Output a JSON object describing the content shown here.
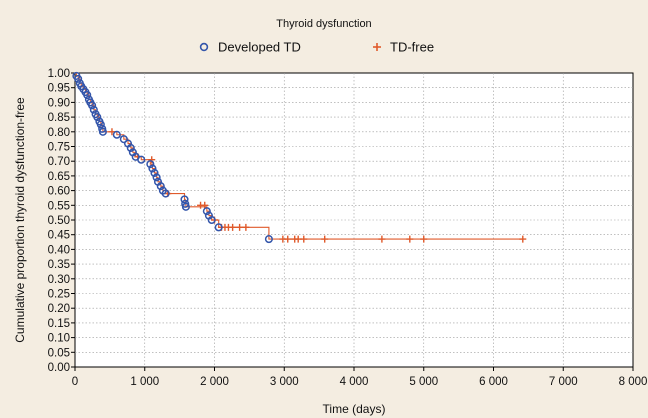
{
  "chart_data": {
    "type": "line",
    "title": "",
    "legend": {
      "title": "Thyroid dysfunction",
      "placement": "top-center",
      "entries": [
        {
          "name": "Developed TD",
          "marker": "circle",
          "color": "#3355aa"
        },
        {
          "name": "TD-free",
          "marker": "plus",
          "color": "#e05a2b"
        }
      ]
    },
    "xlabel": "Time (days)",
    "ylabel": "Cumulative proportion thyroid dysfunction-free",
    "xlim": [
      0,
      8000
    ],
    "ylim": [
      0,
      1
    ],
    "xticks": [
      {
        "value": 0,
        "label": "0"
      },
      {
        "value": 1000,
        "label": "1 000"
      },
      {
        "value": 2000,
        "label": "2 000"
      },
      {
        "value": 3000,
        "label": "3 000"
      },
      {
        "value": 4000,
        "label": "4 000"
      },
      {
        "value": 5000,
        "label": "5 000"
      },
      {
        "value": 6000,
        "label": "6 000"
      },
      {
        "value": 7000,
        "label": "7 000"
      },
      {
        "value": 8000,
        "label": "8 000"
      }
    ],
    "yticks": [
      {
        "value": 0.0,
        "label": "0.00"
      },
      {
        "value": 0.05,
        "label": "0.05"
      },
      {
        "value": 0.1,
        "label": "0.10"
      },
      {
        "value": 0.15,
        "label": "0.15"
      },
      {
        "value": 0.2,
        "label": "0.20"
      },
      {
        "value": 0.25,
        "label": "0.25"
      },
      {
        "value": 0.3,
        "label": "0.30"
      },
      {
        "value": 0.35,
        "label": "0.35"
      },
      {
        "value": 0.4,
        "label": "0.40"
      },
      {
        "value": 0.45,
        "label": "0.45"
      },
      {
        "value": 0.5,
        "label": "0.50"
      },
      {
        "value": 0.55,
        "label": "0.55"
      },
      {
        "value": 0.6,
        "label": "0.60"
      },
      {
        "value": 0.65,
        "label": "0.65"
      },
      {
        "value": 0.7,
        "label": "0.70"
      },
      {
        "value": 0.75,
        "label": "0.75"
      },
      {
        "value": 0.8,
        "label": "0.80"
      },
      {
        "value": 0.85,
        "label": "0.85"
      },
      {
        "value": 0.9,
        "label": "0.90"
      },
      {
        "value": 0.95,
        "label": "0.95"
      },
      {
        "value": 1.0,
        "label": "1.00"
      }
    ],
    "grid": true,
    "line_color": "#e05a2b",
    "series": [
      {
        "name": "Developed TD",
        "marker": "circle",
        "color": "#3355aa",
        "points": [
          {
            "x": 20,
            "y": 0.99
          },
          {
            "x": 45,
            "y": 0.98
          },
          {
            "x": 70,
            "y": 0.965
          },
          {
            "x": 90,
            "y": 0.955
          },
          {
            "x": 120,
            "y": 0.945
          },
          {
            "x": 150,
            "y": 0.935
          },
          {
            "x": 175,
            "y": 0.925
          },
          {
            "x": 200,
            "y": 0.91
          },
          {
            "x": 220,
            "y": 0.9
          },
          {
            "x": 245,
            "y": 0.89
          },
          {
            "x": 270,
            "y": 0.875
          },
          {
            "x": 295,
            "y": 0.86
          },
          {
            "x": 320,
            "y": 0.85
          },
          {
            "x": 350,
            "y": 0.835
          },
          {
            "x": 370,
            "y": 0.825
          },
          {
            "x": 390,
            "y": 0.81
          },
          {
            "x": 400,
            "y": 0.8
          },
          {
            "x": 600,
            "y": 0.79
          },
          {
            "x": 700,
            "y": 0.775
          },
          {
            "x": 760,
            "y": 0.76
          },
          {
            "x": 800,
            "y": 0.745
          },
          {
            "x": 830,
            "y": 0.73
          },
          {
            "x": 870,
            "y": 0.715
          },
          {
            "x": 950,
            "y": 0.705
          },
          {
            "x": 1080,
            "y": 0.69
          },
          {
            "x": 1110,
            "y": 0.675
          },
          {
            "x": 1140,
            "y": 0.66
          },
          {
            "x": 1170,
            "y": 0.645
          },
          {
            "x": 1190,
            "y": 0.63
          },
          {
            "x": 1230,
            "y": 0.615
          },
          {
            "x": 1260,
            "y": 0.6
          },
          {
            "x": 1300,
            "y": 0.59
          },
          {
            "x": 1570,
            "y": 0.57
          },
          {
            "x": 1580,
            "y": 0.555
          },
          {
            "x": 1590,
            "y": 0.545
          },
          {
            "x": 1890,
            "y": 0.53
          },
          {
            "x": 1920,
            "y": 0.515
          },
          {
            "x": 1960,
            "y": 0.5
          },
          {
            "x": 2060,
            "y": 0.475
          },
          {
            "x": 2780,
            "y": 0.435
          }
        ]
      },
      {
        "name": "TD-free",
        "marker": "plus",
        "color": "#e05a2b",
        "points": [
          {
            "x": 530,
            "y": 0.8
          },
          {
            "x": 900,
            "y": 0.715
          },
          {
            "x": 1100,
            "y": 0.705
          },
          {
            "x": 1330,
            "y": 0.59
          },
          {
            "x": 1800,
            "y": 0.55
          },
          {
            "x": 1860,
            "y": 0.55
          },
          {
            "x": 2000,
            "y": 0.5
          },
          {
            "x": 2100,
            "y": 0.475
          },
          {
            "x": 2150,
            "y": 0.475
          },
          {
            "x": 2200,
            "y": 0.475
          },
          {
            "x": 2260,
            "y": 0.475
          },
          {
            "x": 2360,
            "y": 0.475
          },
          {
            "x": 2450,
            "y": 0.475
          },
          {
            "x": 2980,
            "y": 0.435
          },
          {
            "x": 3050,
            "y": 0.435
          },
          {
            "x": 3150,
            "y": 0.435
          },
          {
            "x": 3200,
            "y": 0.435
          },
          {
            "x": 3280,
            "y": 0.435
          },
          {
            "x": 3580,
            "y": 0.435
          },
          {
            "x": 4400,
            "y": 0.435
          },
          {
            "x": 4800,
            "y": 0.435
          },
          {
            "x": 5000,
            "y": 0.435
          },
          {
            "x": 6420,
            "y": 0.435
          }
        ]
      }
    ],
    "survival_steps": [
      {
        "x": 0,
        "y": 1.0
      },
      {
        "x": 20,
        "y": 0.99
      },
      {
        "x": 45,
        "y": 0.98
      },
      {
        "x": 70,
        "y": 0.965
      },
      {
        "x": 90,
        "y": 0.955
      },
      {
        "x": 120,
        "y": 0.945
      },
      {
        "x": 150,
        "y": 0.935
      },
      {
        "x": 175,
        "y": 0.925
      },
      {
        "x": 200,
        "y": 0.91
      },
      {
        "x": 220,
        "y": 0.9
      },
      {
        "x": 245,
        "y": 0.89
      },
      {
        "x": 270,
        "y": 0.875
      },
      {
        "x": 295,
        "y": 0.86
      },
      {
        "x": 320,
        "y": 0.85
      },
      {
        "x": 350,
        "y": 0.835
      },
      {
        "x": 370,
        "y": 0.825
      },
      {
        "x": 390,
        "y": 0.81
      },
      {
        "x": 400,
        "y": 0.8
      },
      {
        "x": 600,
        "y": 0.79
      },
      {
        "x": 700,
        "y": 0.775
      },
      {
        "x": 760,
        "y": 0.76
      },
      {
        "x": 800,
        "y": 0.745
      },
      {
        "x": 830,
        "y": 0.73
      },
      {
        "x": 870,
        "y": 0.715
      },
      {
        "x": 950,
        "y": 0.705
      },
      {
        "x": 1080,
        "y": 0.69
      },
      {
        "x": 1110,
        "y": 0.675
      },
      {
        "x": 1140,
        "y": 0.66
      },
      {
        "x": 1170,
        "y": 0.645
      },
      {
        "x": 1190,
        "y": 0.63
      },
      {
        "x": 1230,
        "y": 0.615
      },
      {
        "x": 1260,
        "y": 0.6
      },
      {
        "x": 1300,
        "y": 0.59
      },
      {
        "x": 1570,
        "y": 0.57
      },
      {
        "x": 1580,
        "y": 0.555
      },
      {
        "x": 1590,
        "y": 0.545
      },
      {
        "x": 1890,
        "y": 0.53
      },
      {
        "x": 1920,
        "y": 0.515
      },
      {
        "x": 1960,
        "y": 0.5
      },
      {
        "x": 2060,
        "y": 0.475
      },
      {
        "x": 2780,
        "y": 0.435
      },
      {
        "x": 6420,
        "y": 0.435
      }
    ]
  }
}
